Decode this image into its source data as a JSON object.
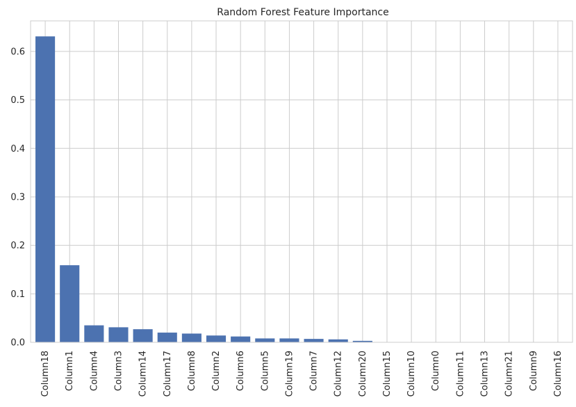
{
  "chart_data": {
    "type": "bar",
    "title": "Random Forest Feature Importance",
    "xlabel": "",
    "ylabel": "",
    "categories": [
      "Column18",
      "Column1",
      "Column4",
      "Column3",
      "Column14",
      "Column17",
      "Column8",
      "Column2",
      "Column6",
      "Column5",
      "Column19",
      "Column7",
      "Column12",
      "Column20",
      "Column15",
      "Column10",
      "Column0",
      "Column11",
      "Column13",
      "Column21",
      "Column9",
      "Column16"
    ],
    "values": [
      0.631,
      0.159,
      0.035,
      0.031,
      0.027,
      0.02,
      0.018,
      0.014,
      0.012,
      0.008,
      0.008,
      0.007,
      0.006,
      0.003,
      0.0005,
      0.0004,
      0.0003,
      0.0003,
      0.0002,
      0.0002,
      0.0001,
      0.0001
    ],
    "ylim": [
      0,
      0.663
    ],
    "yticks": [
      "0.0",
      "0.1",
      "0.2",
      "0.3",
      "0.4",
      "0.5",
      "0.6"
    ],
    "grid": true,
    "legend": "none",
    "colors": {
      "bar": "#4c72b0",
      "grid": "#cccccc",
      "axes": "#cccccc",
      "text": "#262626"
    }
  }
}
